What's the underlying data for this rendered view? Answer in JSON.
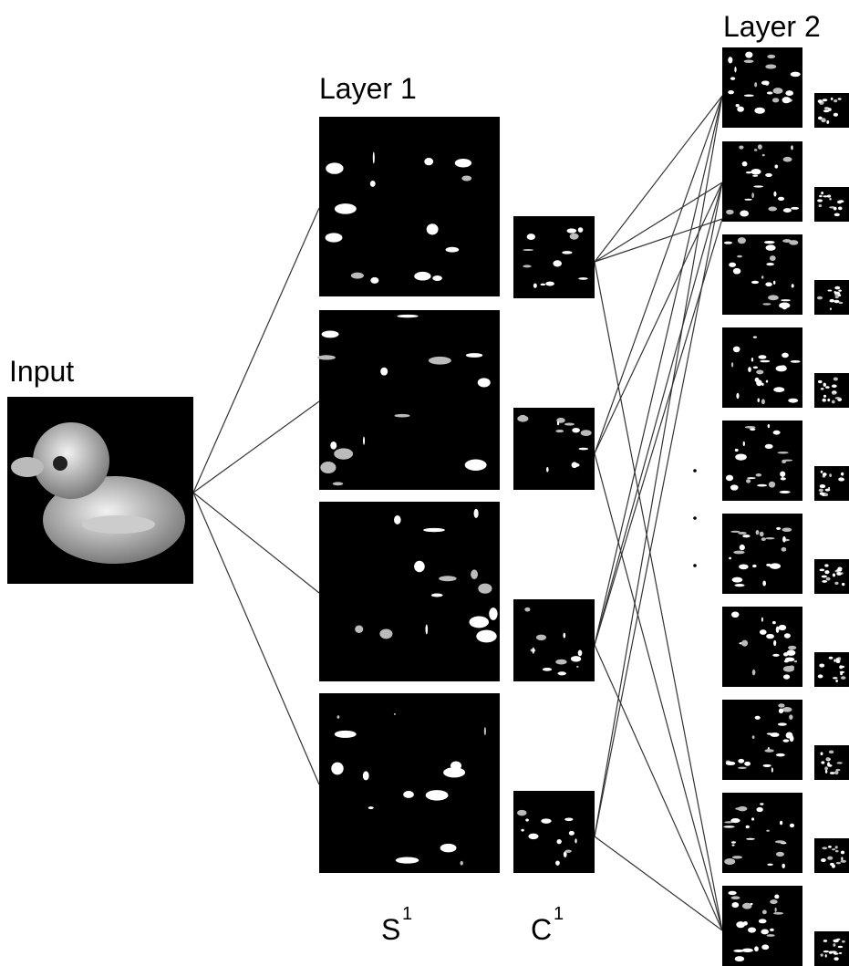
{
  "labels": {
    "input": "Input",
    "layer1": "Layer 1",
    "layer2": "Layer 2"
  },
  "s1": {
    "base": "S",
    "sup": "1"
  },
  "c1": {
    "base": "C",
    "sup": "1"
  }
}
